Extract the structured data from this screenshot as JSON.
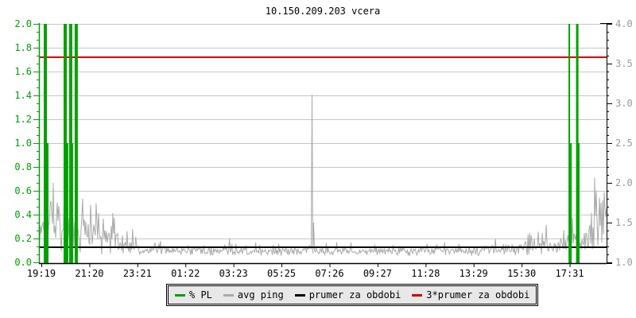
{
  "title": "10.150.209.203 vcera",
  "colors": {
    "pl_green": "#00a000",
    "ping_gray": "#aaaaaa",
    "mean_black": "#000000",
    "threshold_red": "#d40000",
    "grid_gray": "#c6c6c6",
    "right_label_gray": "#999999",
    "axis_black": "#000000",
    "legend_bg": "#e8e8e8"
  },
  "legend": {
    "items": [
      {
        "label": "% PL",
        "color": "#00a000"
      },
      {
        "label": "avg ping",
        "color": "#aaaaaa"
      },
      {
        "label": "prumer za obdobi",
        "color": "#000000"
      },
      {
        "label": "3*prumer za obdobi",
        "color": "#d40000"
      }
    ]
  },
  "chart_data": {
    "type": "line",
    "title": "10.150.209.203 vcera",
    "grid": "horizontal-only",
    "legend_position": "bottom-center",
    "left_axis": {
      "name": "% PL",
      "range": [
        0.0,
        2.0
      ],
      "tick_step": 0.2,
      "color": "#00a000",
      "tick_labels": [
        "2.0",
        "1.8",
        "1.6",
        "1.4",
        "1.2",
        "1.0",
        "0.8",
        "0.6",
        "0.4",
        "0.2",
        "0.0"
      ]
    },
    "right_axis": {
      "name": "avg ping (ms)",
      "range": [
        1.0,
        4.0
      ],
      "tick_step": 0.5,
      "color": "#999999",
      "tick_labels": [
        "4.0",
        "3.5",
        "3.0",
        "2.5",
        "2.0",
        "1.5",
        "1.0"
      ]
    },
    "x_axis": {
      "tick_labels": [
        "19:19",
        "21:20",
        "23:21",
        "01:22",
        "03:23",
        "05:25",
        "07:26",
        "09:27",
        "11:28",
        "13:29",
        "15:30",
        "17:31"
      ],
      "tick_minutes": [
        6,
        127,
        248,
        369,
        490,
        611,
        732,
        853,
        974,
        1095,
        1216,
        1337
      ],
      "total_minutes": 1430
    },
    "series": [
      {
        "name": "% PL",
        "type": "event-bars",
        "axis": "left",
        "color": "#00a000",
        "events": [
          {
            "min": 14,
            "pct": 2.0,
            "w": 2
          },
          {
            "min": 18,
            "pct": 2.0,
            "w": 2
          },
          {
            "min": 22,
            "pct": 1.0,
            "w": 2
          },
          {
            "min": 64,
            "pct": 2.0,
            "w": 2
          },
          {
            "min": 68,
            "pct": 2.0,
            "w": 2
          },
          {
            "min": 72,
            "pct": 1.0,
            "w": 2
          },
          {
            "min": 78,
            "pct": 2.0,
            "w": 2
          },
          {
            "min": 82,
            "pct": 2.0,
            "w": 2
          },
          {
            "min": 84,
            "pct": 1.0,
            "w": 2
          },
          {
            "min": 92,
            "pct": 2.0,
            "w": 2
          },
          {
            "min": 96,
            "pct": 2.0,
            "w": 2
          },
          {
            "min": 1336,
            "pct": 2.0,
            "w": 2
          },
          {
            "min": 1340,
            "pct": 1.0,
            "w": 2
          },
          {
            "min": 1356,
            "pct": 2.0,
            "w": 3
          },
          {
            "min": 1360,
            "pct": 1.0,
            "w": 2
          }
        ]
      },
      {
        "name": "avg ping",
        "type": "noisy-line",
        "axis": "right",
        "color": "#aaaaaa",
        "seed": 1337,
        "step_min": 2,
        "envelope": [
          [
            0,
            1.38,
            0.3
          ],
          [
            15,
            1.48,
            0.42
          ],
          [
            40,
            1.45,
            0.4
          ],
          [
            70,
            1.42,
            0.38
          ],
          [
            100,
            1.38,
            0.34
          ],
          [
            130,
            1.34,
            0.3
          ],
          [
            160,
            1.3,
            0.26
          ],
          [
            200,
            1.24,
            0.18
          ],
          [
            230,
            1.19,
            0.12
          ],
          [
            260,
            1.16,
            0.09
          ],
          [
            300,
            1.15,
            0.08
          ],
          [
            360,
            1.14,
            0.07
          ],
          [
            420,
            1.15,
            0.08
          ],
          [
            480,
            1.14,
            0.07
          ],
          [
            540,
            1.13,
            0.06
          ],
          [
            600,
            1.14,
            0.07
          ],
          [
            640,
            1.16,
            0.09
          ],
          [
            680,
            1.15,
            0.08
          ],
          [
            720,
            1.14,
            0.07
          ],
          [
            800,
            1.13,
            0.06
          ],
          [
            900,
            1.14,
            0.07
          ],
          [
            1000,
            1.14,
            0.07
          ],
          [
            1100,
            1.15,
            0.08
          ],
          [
            1180,
            1.16,
            0.09
          ],
          [
            1240,
            1.2,
            0.13
          ],
          [
            1300,
            1.22,
            0.15
          ],
          [
            1340,
            1.24,
            0.17
          ],
          [
            1380,
            1.3,
            0.22
          ],
          [
            1400,
            1.48,
            0.38
          ],
          [
            1430,
            1.55,
            0.4
          ]
        ],
        "spikes": [
          [
            36,
            2.0
          ],
          [
            70,
            1.95
          ],
          [
            95,
            1.9
          ],
          [
            110,
            1.8
          ],
          [
            130,
            1.72
          ],
          [
            150,
            1.62
          ],
          [
            163,
            1.55
          ],
          [
            237,
            1.42
          ],
          [
            480,
            1.3
          ],
          [
            688,
            3.11
          ],
          [
            692,
            1.5
          ],
          [
            1405,
            1.9
          ],
          [
            1416,
            1.75
          ],
          [
            1424,
            1.88
          ]
        ]
      },
      {
        "name": "prumer za obdobi",
        "type": "hline",
        "axis": "right",
        "color": "#000000",
        "value_ms": 1.19
      },
      {
        "name": "3*prumer za obdobi",
        "type": "hline",
        "axis": "right",
        "color": "#d40000",
        "value_ms": 3.58
      }
    ]
  }
}
